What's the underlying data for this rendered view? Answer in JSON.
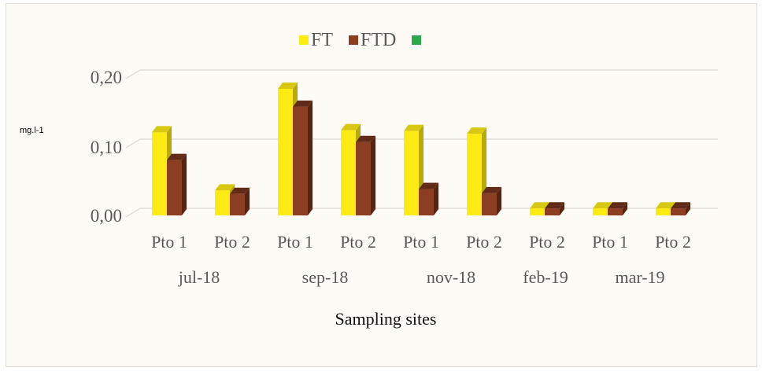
{
  "chart_data": {
    "type": "bar",
    "title": "",
    "xlabel": "Sampling sites",
    "ylabel": "mg.l-1",
    "ylim": [
      0,
      0.2
    ],
    "yticks": [
      "0,00",
      "0,10",
      "0,20"
    ],
    "grid": true,
    "legend_position": "top",
    "style": "3d-clustered-column",
    "groups": [
      {
        "label": "jul-18",
        "categories": [
          "Pto 1",
          "Pto 2"
        ]
      },
      {
        "label": "sep-18",
        "categories": [
          "Pto 1",
          "Pto 2"
        ]
      },
      {
        "label": "nov-18",
        "categories": [
          "Pto 1",
          "Pto 2"
        ]
      },
      {
        "label": "feb-19",
        "categories": [
          "Pto 2"
        ]
      },
      {
        "label": "mar-19",
        "categories": [
          "Pto 1",
          "Pto 2"
        ]
      }
    ],
    "categories": [
      "Pto 1",
      "Pto 2",
      "Pto 1",
      "Pto 2",
      "Pto 1",
      "Pto 2",
      "Pto 2",
      "Pto 1",
      "Pto 2"
    ],
    "series": [
      {
        "name": "FT",
        "color": "#ffeb14",
        "values": [
          0.12,
          0.036,
          0.183,
          0.123,
          0.122,
          0.118,
          0.01,
          0.01,
          0.01
        ]
      },
      {
        "name": "FTD",
        "color": "#8b3e22",
        "values": [
          0.08,
          0.031,
          0.157,
          0.106,
          0.038,
          0.032,
          0.01,
          0.01,
          0.01
        ]
      },
      {
        "name": "",
        "color": "#2da84a",
        "values": []
      }
    ]
  },
  "legend": [
    {
      "label": "FT",
      "color": "#ffeb14"
    },
    {
      "label": "FTD",
      "color": "#8b3e22"
    },
    {
      "label": "",
      "color": "#2da84a"
    }
  ]
}
